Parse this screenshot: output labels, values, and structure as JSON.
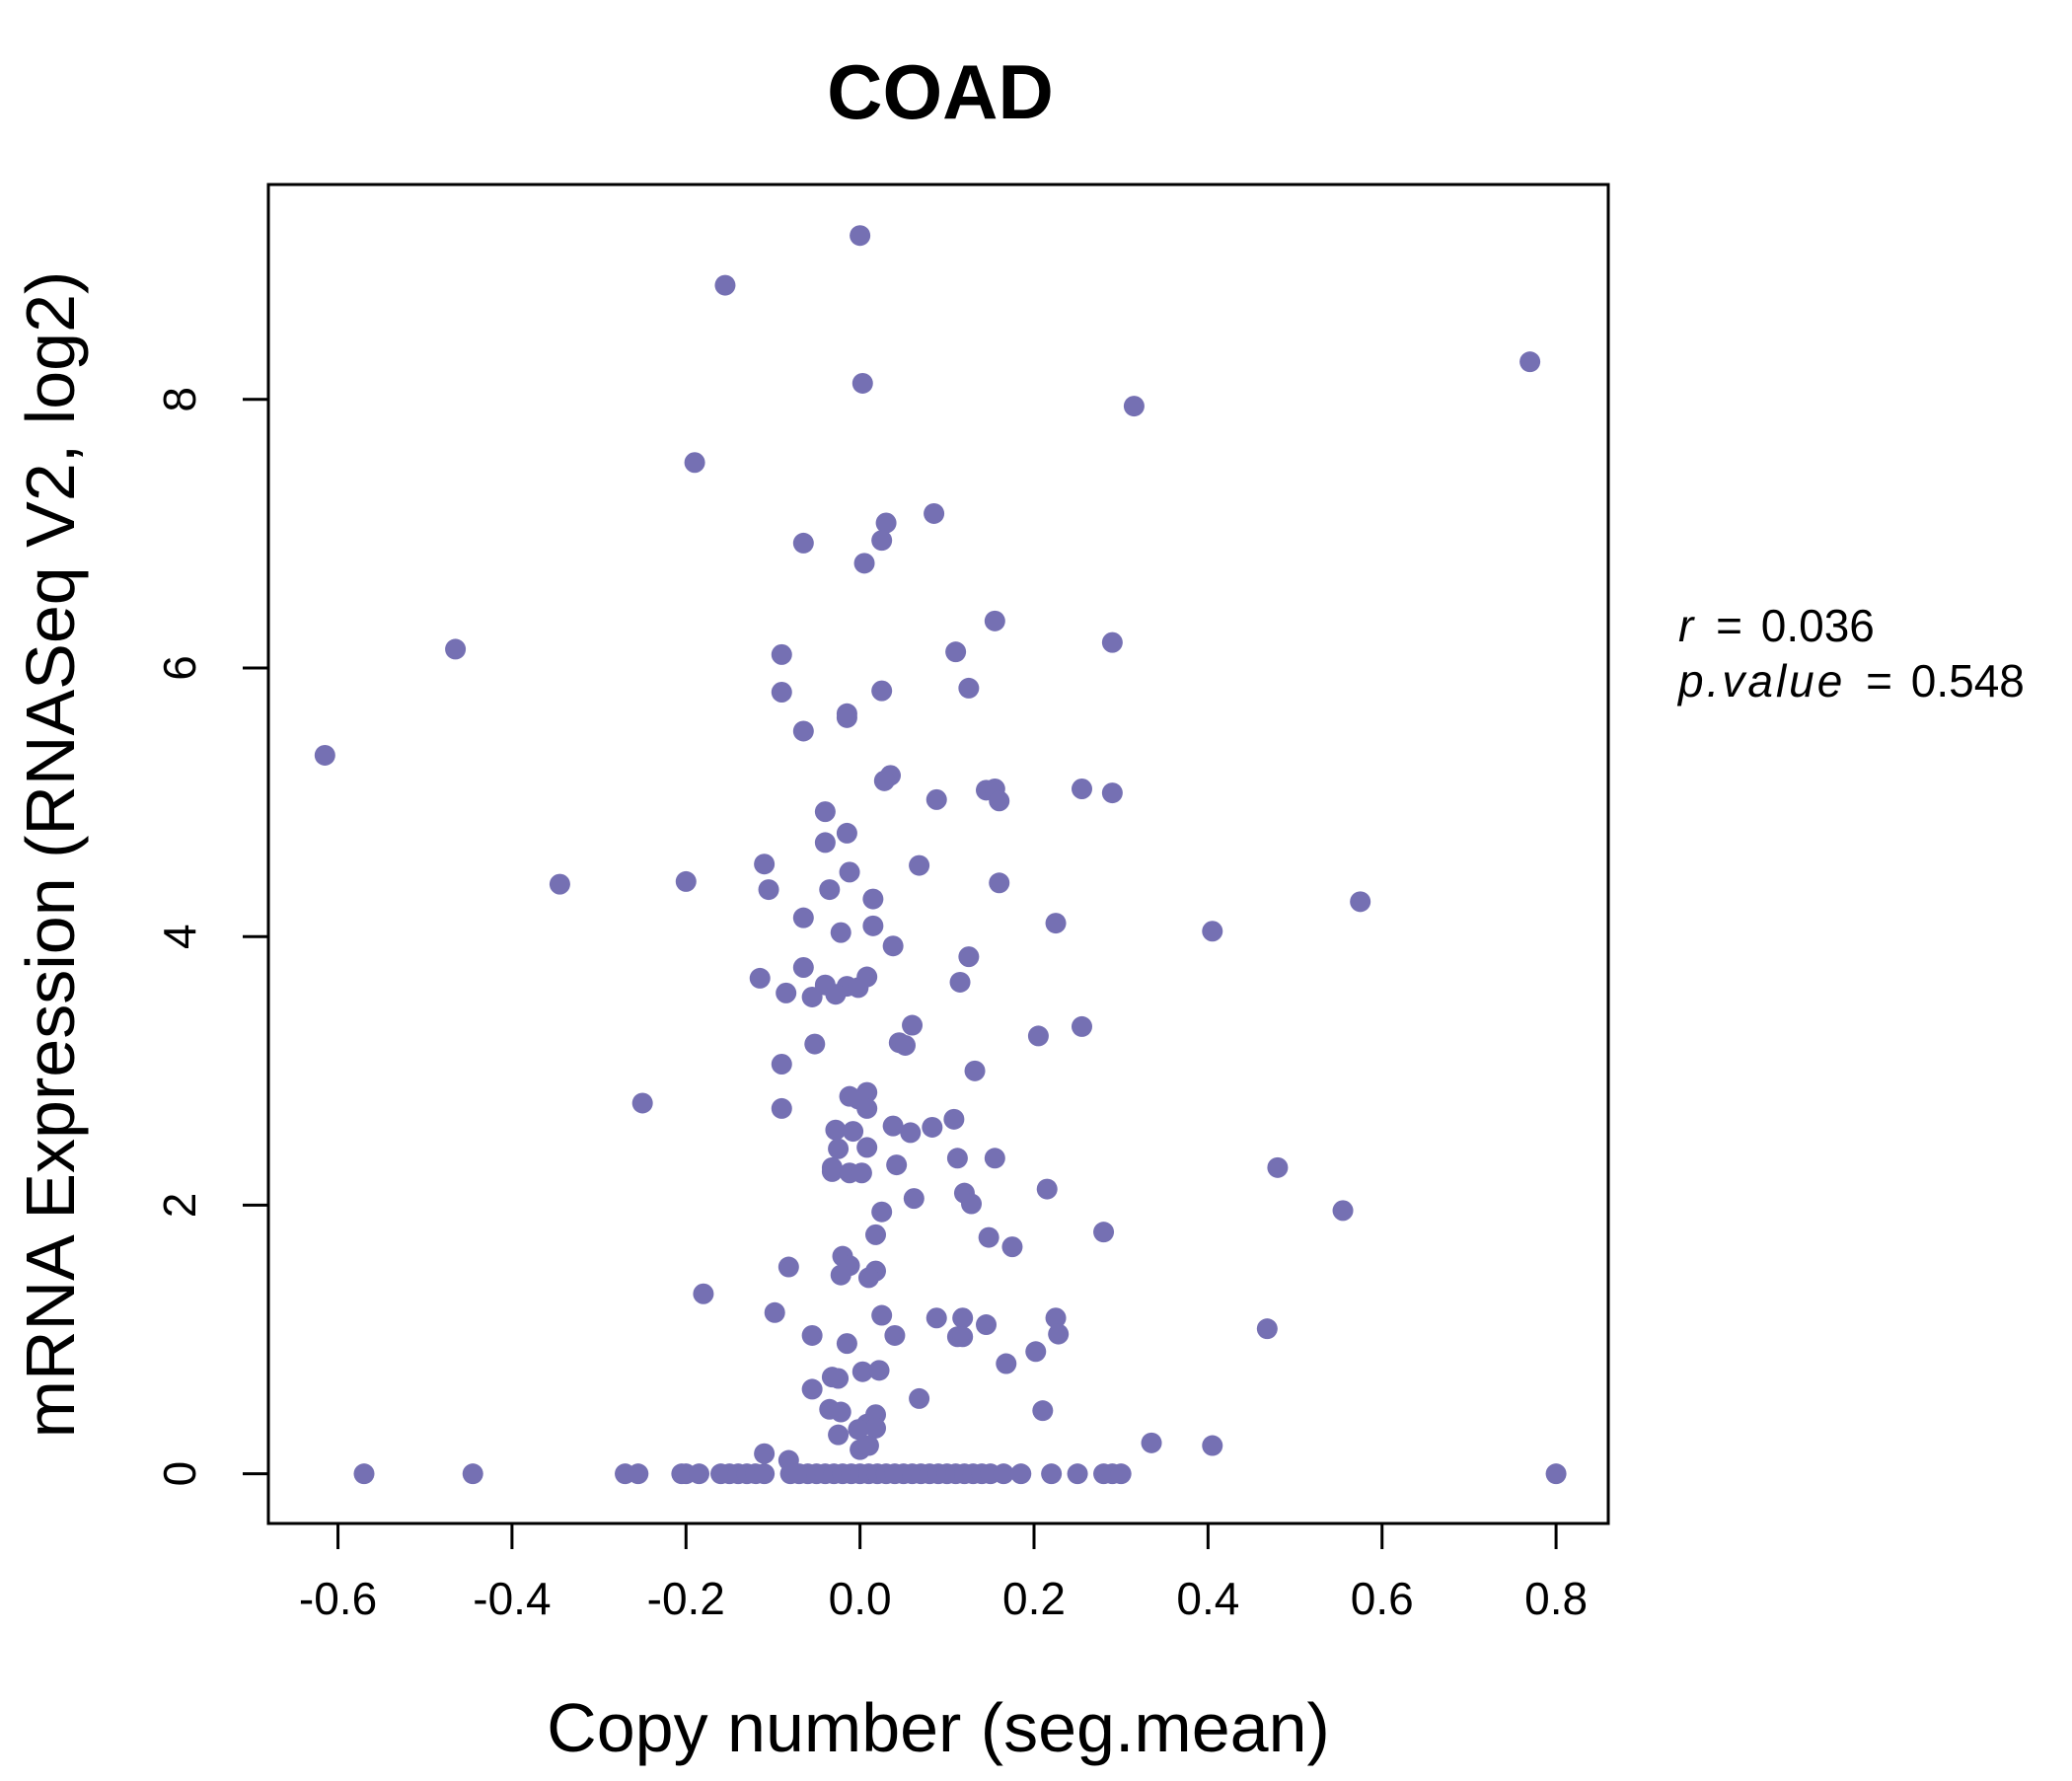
{
  "chart_data": {
    "type": "scatter",
    "title": "COAD",
    "xlabel": "Copy number (seg.mean)",
    "ylabel": "mRNA Expression (RNASeq V2, log2)",
    "xlim": [
      -0.68,
      0.86
    ],
    "ylim": [
      -0.37,
      9.6
    ],
    "x_ticks": [
      -0.6,
      -0.4,
      -0.2,
      0.0,
      0.2,
      0.4,
      0.6,
      0.8
    ],
    "x_tick_labels": [
      "-0.6",
      "-0.4",
      "-0.2",
      "0.0",
      "0.2",
      "0.4",
      "0.6",
      "0.8"
    ],
    "y_ticks": [
      0,
      2,
      4,
      6,
      8
    ],
    "y_tick_labels": [
      "0",
      "2",
      "4",
      "6",
      "8"
    ],
    "grid": false,
    "point_color": "#7570b3",
    "annotations": {
      "r_label": "r",
      "r_value": "0.036",
      "p_label": "p.value",
      "p_value": "0.548",
      "equals": "="
    },
    "points": [
      [
        0.0,
        9.22
      ],
      [
        -0.155,
        8.85
      ],
      [
        0.77,
        8.28
      ],
      [
        0.003,
        8.12
      ],
      [
        0.315,
        7.95
      ],
      [
        -0.19,
        7.53
      ],
      [
        0.085,
        7.15
      ],
      [
        0.03,
        7.08
      ],
      [
        -0.065,
        6.93
      ],
      [
        0.025,
        6.95
      ],
      [
        0.005,
        6.78
      ],
      [
        0.155,
        6.35
      ],
      [
        -0.465,
        6.14
      ],
      [
        0.29,
        6.19
      ],
      [
        -0.09,
        6.1
      ],
      [
        0.11,
        6.12
      ],
      [
        -0.09,
        5.82
      ],
      [
        0.025,
        5.83
      ],
      [
        0.125,
        5.85
      ],
      [
        -0.015,
        5.63
      ],
      [
        -0.015,
        5.66
      ],
      [
        -0.065,
        5.53
      ],
      [
        -0.615,
        5.35
      ],
      [
        0.035,
        5.2
      ],
      [
        0.028,
        5.16
      ],
      [
        0.255,
        5.1
      ],
      [
        0.145,
        5.09
      ],
      [
        0.155,
        5.1
      ],
      [
        0.29,
        5.07
      ],
      [
        0.088,
        5.02
      ],
      [
        0.16,
        5.01
      ],
      [
        -0.04,
        4.93
      ],
      [
        -0.015,
        4.77
      ],
      [
        -0.04,
        4.7
      ],
      [
        -0.11,
        4.54
      ],
      [
        0.068,
        4.53
      ],
      [
        -0.012,
        4.48
      ],
      [
        -0.345,
        4.39
      ],
      [
        -0.2,
        4.41
      ],
      [
        -0.105,
        4.35
      ],
      [
        -0.035,
        4.35
      ],
      [
        0.16,
        4.4
      ],
      [
        0.015,
        4.28
      ],
      [
        0.575,
        4.26
      ],
      [
        -0.065,
        4.14
      ],
      [
        0.225,
        4.1
      ],
      [
        0.015,
        4.08
      ],
      [
        -0.022,
        4.03
      ],
      [
        0.405,
        4.04
      ],
      [
        0.038,
        3.93
      ],
      [
        0.125,
        3.85
      ],
      [
        -0.065,
        3.77
      ],
      [
        -0.115,
        3.69
      ],
      [
        0.008,
        3.7
      ],
      [
        -0.04,
        3.64
      ],
      [
        -0.015,
        3.63
      ],
      [
        0.115,
        3.66
      ],
      [
        -0.002,
        3.62
      ],
      [
        -0.085,
        3.58
      ],
      [
        -0.028,
        3.57
      ],
      [
        -0.055,
        3.55
      ],
      [
        0.06,
        3.34
      ],
      [
        0.255,
        3.33
      ],
      [
        0.205,
        3.26
      ],
      [
        0.045,
        3.21
      ],
      [
        0.052,
        3.19
      ],
      [
        -0.052,
        3.2
      ],
      [
        -0.09,
        3.05
      ],
      [
        0.132,
        3.0
      ],
      [
        0.008,
        2.84
      ],
      [
        -0.012,
        2.81
      ],
      [
        -0.002,
        2.79
      ],
      [
        -0.25,
        2.76
      ],
      [
        0.008,
        2.72
      ],
      [
        -0.09,
        2.72
      ],
      [
        0.108,
        2.64
      ],
      [
        0.038,
        2.59
      ],
      [
        0.083,
        2.58
      ],
      [
        0.058,
        2.54
      ],
      [
        -0.028,
        2.56
      ],
      [
        -0.008,
        2.55
      ],
      [
        0.008,
        2.43
      ],
      [
        -0.025,
        2.42
      ],
      [
        0.112,
        2.35
      ],
      [
        0.155,
        2.35
      ],
      [
        -0.032,
        2.28
      ],
      [
        0.042,
        2.3
      ],
      [
        0.48,
        2.28
      ],
      [
        -0.032,
        2.25
      ],
      [
        -0.012,
        2.24
      ],
      [
        0.002,
        2.24
      ],
      [
        0.215,
        2.12
      ],
      [
        0.12,
        2.09
      ],
      [
        0.128,
        2.01
      ],
      [
        0.062,
        2.05
      ],
      [
        0.555,
        1.96
      ],
      [
        0.025,
        1.95
      ],
      [
        0.018,
        1.78
      ],
      [
        0.28,
        1.8
      ],
      [
        0.148,
        1.76
      ],
      [
        0.175,
        1.69
      ],
      [
        -0.02,
        1.62
      ],
      [
        -0.082,
        1.54
      ],
      [
        -0.012,
        1.55
      ],
      [
        0.018,
        1.51
      ],
      [
        -0.022,
        1.48
      ],
      [
        0.01,
        1.46
      ],
      [
        -0.18,
        1.34
      ],
      [
        -0.098,
        1.2
      ],
      [
        0.025,
        1.18
      ],
      [
        0.088,
        1.16
      ],
      [
        0.118,
        1.16
      ],
      [
        0.225,
        1.16
      ],
      [
        0.145,
        1.11
      ],
      [
        0.468,
        1.08
      ],
      [
        0.04,
        1.03
      ],
      [
        0.112,
        1.02
      ],
      [
        0.118,
        1.02
      ],
      [
        0.228,
        1.04
      ],
      [
        -0.055,
        1.03
      ],
      [
        -0.015,
        0.97
      ],
      [
        0.202,
        0.91
      ],
      [
        0.168,
        0.82
      ],
      [
        0.003,
        0.76
      ],
      [
        0.022,
        0.77
      ],
      [
        -0.032,
        0.72
      ],
      [
        -0.025,
        0.71
      ],
      [
        -0.055,
        0.63
      ],
      [
        0.068,
        0.56
      ],
      [
        -0.035,
        0.48
      ],
      [
        -0.022,
        0.46
      ],
      [
        0.21,
        0.47
      ],
      [
        0.018,
        0.44
      ],
      [
        0.008,
        0.37
      ],
      [
        0.018,
        0.34
      ],
      [
        -0.002,
        0.33
      ],
      [
        -0.025,
        0.29
      ],
      [
        0.335,
        0.23
      ],
      [
        0.405,
        0.21
      ],
      [
        0.0,
        0.18
      ],
      [
        0.01,
        0.21
      ],
      [
        -0.11,
        0.15
      ],
      [
        -0.082,
        0.1
      ],
      [
        -0.57,
        0.0
      ],
      [
        -0.445,
        0.0
      ],
      [
        -0.27,
        0.0
      ],
      [
        -0.255,
        0.0
      ],
      [
        -0.205,
        0.0
      ],
      [
        -0.2,
        0.0
      ],
      [
        -0.185,
        0.0
      ],
      [
        -0.16,
        0.0
      ],
      [
        -0.15,
        0.0
      ],
      [
        -0.14,
        0.0
      ],
      [
        -0.13,
        0.0
      ],
      [
        -0.12,
        0.0
      ],
      [
        -0.11,
        0.0
      ],
      [
        -0.08,
        0.0
      ],
      [
        -0.07,
        0.0
      ],
      [
        -0.06,
        0.0
      ],
      [
        -0.05,
        0.0
      ],
      [
        -0.04,
        0.0
      ],
      [
        -0.03,
        0.0
      ],
      [
        -0.02,
        0.0
      ],
      [
        -0.01,
        0.0
      ],
      [
        0.0,
        0.0
      ],
      [
        0.01,
        0.0
      ],
      [
        0.02,
        0.0
      ],
      [
        0.03,
        0.0
      ],
      [
        0.04,
        0.0
      ],
      [
        0.05,
        0.0
      ],
      [
        0.06,
        0.0
      ],
      [
        0.07,
        0.0
      ],
      [
        0.08,
        0.0
      ],
      [
        0.09,
        0.0
      ],
      [
        0.1,
        0.0
      ],
      [
        0.11,
        0.0
      ],
      [
        0.12,
        0.0
      ],
      [
        0.13,
        0.0
      ],
      [
        0.14,
        0.0
      ],
      [
        0.15,
        0.0
      ],
      [
        0.165,
        0.0
      ],
      [
        0.185,
        0.0
      ],
      [
        0.22,
        0.0
      ],
      [
        0.25,
        0.0
      ],
      [
        0.28,
        0.0
      ],
      [
        0.29,
        0.0
      ],
      [
        0.3,
        0.0
      ],
      [
        0.8,
        0.0
      ]
    ]
  }
}
